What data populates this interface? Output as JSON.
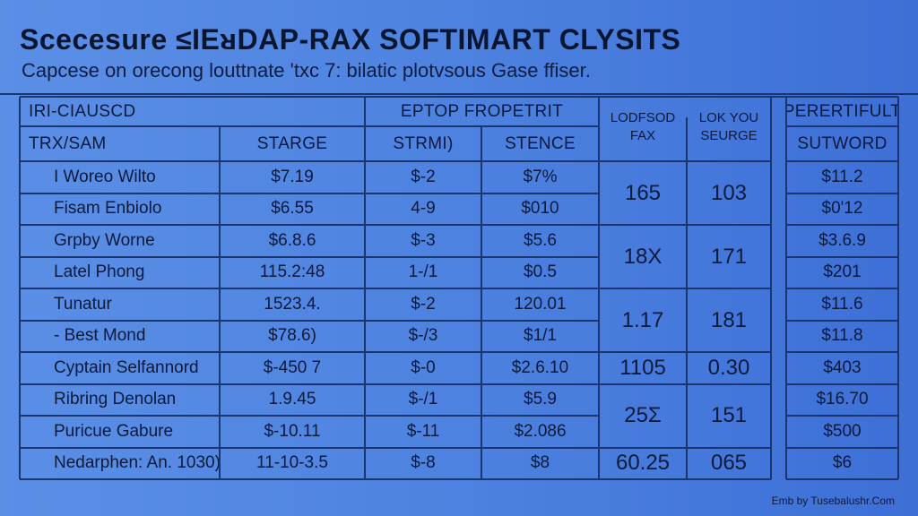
{
  "title": "Scecesure ≤IEᴚDAP-RAX SOFTIMART CLYSITS",
  "subtitle": "Capcese on orecong louttnate 'txc 7: bilatic plotvsous Gase ffiser.",
  "table": {
    "section_left": "IRI-CIAUSCD",
    "section_mid": "EPTOP FROPETRIT",
    "section_right": "PERERTIFULT",
    "col_name": "TRX/SAM",
    "col_starge": "STARGE",
    "col_strmi": "STRMI)",
    "col_stence": "STENCE",
    "col_lodfsod": "LODFSOD\nFAX",
    "col_lokyou": "LOK YOU\nSEURGE",
    "col_sutword": "SUTWORD",
    "rows": [
      {
        "name": "I Woreo Wilto",
        "starge": "$7.19",
        "strmi": "$-2",
        "stence": "$7%",
        "sutword": "$11.2"
      },
      {
        "name": "Fisam Enbiolo",
        "starge": "$6.55",
        "strmi": "4-9",
        "stence": "$010",
        "sutword": "$0'12"
      },
      {
        "name": "Grpby Worne",
        "starge": "$6.8.6",
        "strmi": "$-3",
        "stence": "$5.6",
        "sutword": "$3.6.9"
      },
      {
        "name": "Latel Phong",
        "starge": "115.2:48",
        "strmi": "1-/1",
        "stence": "$0.5",
        "sutword": "$201"
      },
      {
        "name": "Tunatur",
        "starge": "1523.4.",
        "strmi": "$-2",
        "stence": "120.01",
        "sutword": "$11.6"
      },
      {
        "name": "- Best Mond",
        "starge": "$78.6)",
        "strmi": "$-/3",
        "stence": "$1/1",
        "sutword": "$11.8"
      },
      {
        "name": "Cyptain Selfannord",
        "starge": "$-450 7",
        "strmi": "$-0",
        "stence": "$2.6.10",
        "sutword": "$403"
      },
      {
        "name": "Ribring Denolan",
        "starge": "1.9.45",
        "strmi": "$-/1",
        "stence": "$5.9",
        "sutword": "$16.70"
      },
      {
        "name": "Puricue Gabure",
        "starge": "$-10.11",
        "strmi": "$-11",
        "stence": "$2.086",
        "sutword": "$500"
      },
      {
        "name": "Nedarphen: An. 1030)",
        "starge": "11-10-3.5",
        "strmi": "$-8",
        "stence": "$8",
        "sutword": "$6"
      }
    ],
    "merged": [
      {
        "lodfsod": "165",
        "lokyou": "103"
      },
      {
        "lodfsod": "18X",
        "lokyou": "171"
      },
      {
        "lodfsod": "1.17",
        "lokyou": "181"
      },
      {
        "lodfsod": "1105",
        "lokyou": "0.30"
      },
      {
        "lodfsod": "25Σ",
        "lokyou": "151"
      },
      {
        "lodfsod": "60.25",
        "lokyou": "065"
      }
    ]
  },
  "footer": "Emb by Tusebalushr.Com"
}
